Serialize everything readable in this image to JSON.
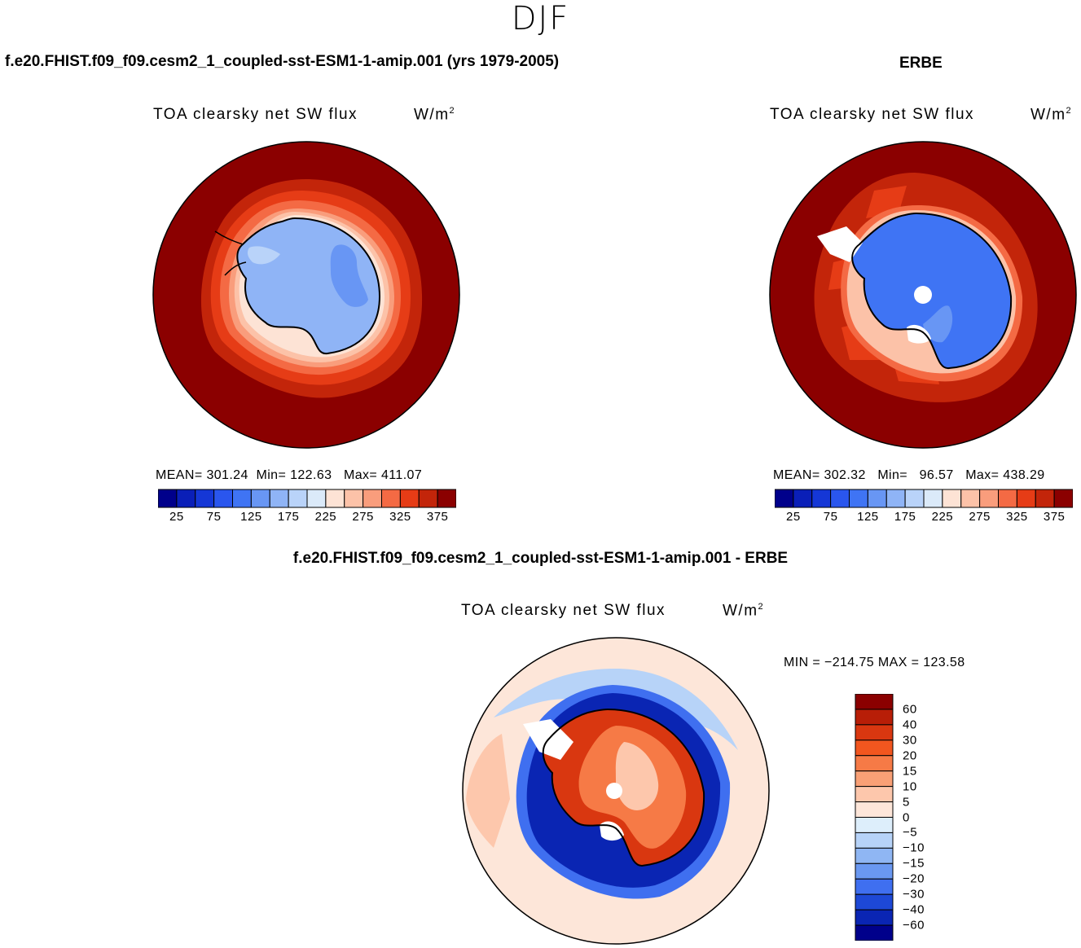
{
  "page": {
    "title": "DJF"
  },
  "panels": {
    "model": {
      "case_title": "f.e20.FHIST.f09_f09.cesm2_1_coupled-sst-ESM1-1-amip.001 (yrs 1979-2005)",
      "variable": "TOA clearsky net SW flux",
      "units_base": "W/m",
      "units_exp": "2",
      "stats": {
        "mean_label": "MEAN=",
        "mean": "301.24",
        "min_label": "Min=",
        "min": "122.63",
        "max_label": "Max=",
        "max": "411.07"
      }
    },
    "obs": {
      "case_title": "ERBE",
      "variable": "TOA clearsky net SW flux",
      "units_base": "W/m",
      "units_exp": "2",
      "stats": {
        "mean_label": "MEAN=",
        "mean": "302.32",
        "min_label": "Min=",
        "min": "96.57",
        "max_label": "Max=",
        "max": "438.29"
      }
    },
    "diff": {
      "case_title": "f.e20.FHIST.f09_f09.cesm2_1_coupled-sst-ESM1-1-amip.001 - ERBE",
      "variable": "TOA clearsky net SW flux",
      "units_base": "W/m",
      "units_exp": "2",
      "minmax_text": "MIN = −214.75 MAX = 123.58"
    }
  },
  "colors": {
    "absolute": [
      "#00008b",
      "#0a1fb8",
      "#1537d6",
      "#2a56ee",
      "#3f74f4",
      "#6896f4",
      "#8fb4f6",
      "#b9d3f9",
      "#dbeaf9",
      "#fde3d5",
      "#fcc2a8",
      "#f99d7c",
      "#f46a44",
      "#e63c16",
      "#c3250a",
      "#8b0000"
    ],
    "difference": [
      "#8b0000",
      "#b81e07",
      "#d93710",
      "#f2561f",
      "#f67a46",
      "#f9a076",
      "#fdc7ac",
      "#fde6d9",
      "#ddeefb",
      "#b7d3f8",
      "#8fb6f3",
      "#6a98f1",
      "#3f6ff0",
      "#1d48d6",
      "#0a25b3",
      "#00008b"
    ]
  },
  "chart_data": [
    {
      "type": "heatmap",
      "projection": "south-polar-stereographic",
      "title": "f.e20.FHIST.f09_f09.cesm2_1_coupled-sst-ESM1-1-amip.001 (yrs 1979-2005)",
      "variable": "TOA clearsky net SW flux",
      "units": "W/m2",
      "stats": {
        "mean": 301.24,
        "min": 122.63,
        "max": 411.07
      },
      "contour_levels": [
        25,
        50,
        75,
        100,
        125,
        150,
        175,
        200,
        225,
        250,
        275,
        300,
        325,
        350,
        375
      ],
      "colorbar_ticks": [
        "25",
        "75",
        "125",
        "175",
        "225",
        "275",
        "325",
        "375"
      ],
      "colorbar_orientation": "horizontal"
    },
    {
      "type": "heatmap",
      "projection": "south-polar-stereographic",
      "title": "ERBE",
      "variable": "TOA clearsky net SW flux",
      "units": "W/m2",
      "stats": {
        "mean": 302.32,
        "min": 96.57,
        "max": 438.29
      },
      "contour_levels": [
        25,
        50,
        75,
        100,
        125,
        150,
        175,
        200,
        225,
        250,
        275,
        300,
        325,
        350,
        375
      ],
      "colorbar_ticks": [
        "25",
        "75",
        "125",
        "175",
        "225",
        "275",
        "325",
        "375"
      ],
      "colorbar_orientation": "horizontal"
    },
    {
      "type": "heatmap",
      "projection": "south-polar-stereographic",
      "title": "f.e20.FHIST.f09_f09.cesm2_1_coupled-sst-ESM1-1-amip.001 - ERBE",
      "variable": "TOA clearsky net SW flux",
      "units": "W/m2",
      "stats": {
        "min": -214.75,
        "max": 123.58
      },
      "contour_levels": [
        60,
        40,
        30,
        20,
        15,
        10,
        5,
        0,
        -5,
        -10,
        -15,
        -20,
        -30,
        -40,
        -60
      ],
      "colorbar_ticks": [
        "60",
        "40",
        "30",
        "20",
        "15",
        "10",
        "5",
        "0",
        "−5",
        "−10",
        "−15",
        "−20",
        "−30",
        "−40",
        "−60"
      ],
      "colorbar_orientation": "vertical"
    }
  ]
}
